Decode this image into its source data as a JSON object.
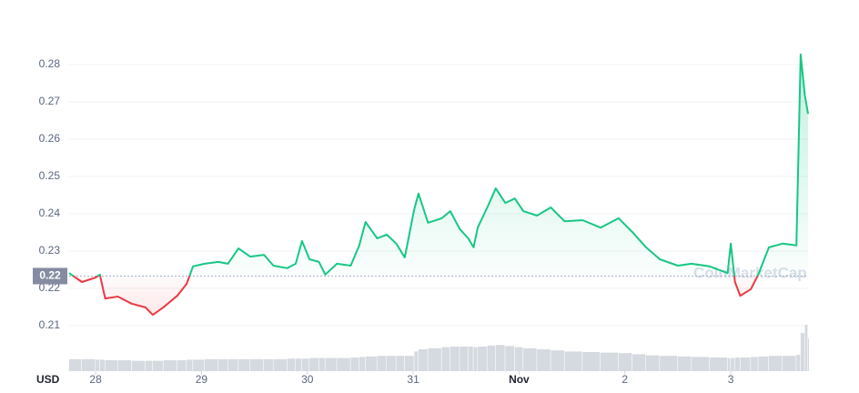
{
  "chart_data": {
    "type": "line",
    "currency": "USD",
    "watermark": "CoinMarketCap",
    "x": [
      -0.25,
      -0.13,
      0,
      0.04,
      0.09,
      0.21,
      0.34,
      0.47,
      0.54,
      0.64,
      0.77,
      0.86,
      0.92,
      1.03,
      1.16,
      1.25,
      1.35,
      1.46,
      1.59,
      1.68,
      1.81,
      1.89,
      1.95,
      2.02,
      2.11,
      2.17,
      2.28,
      2.41,
      2.49,
      2.55,
      2.66,
      2.75,
      2.84,
      2.92,
      3.01,
      3.05,
      3.14,
      3.27,
      3.35,
      3.44,
      3.52,
      3.57,
      3.61,
      3.7,
      3.78,
      3.87,
      3.96,
      4.04,
      4.17,
      4.3,
      4.43,
      4.6,
      4.77,
      4.94,
      5.07,
      5.2,
      5.33,
      5.5,
      5.63,
      5.8,
      5.97,
      6.0,
      6.04,
      6.09,
      6.19,
      6.26,
      6.36,
      6.49,
      6.62,
      6.66,
      6.7,
      6.73
    ],
    "series": [
      {
        "values": [
          0.2241,
          0.2217,
          0.2229,
          0.2237,
          0.2173,
          0.2178,
          0.2159,
          0.2149,
          0.2129,
          0.2149,
          0.218,
          0.2212,
          0.2259,
          0.2266,
          0.2271,
          0.2266,
          0.2307,
          0.2285,
          0.229,
          0.2261,
          0.2254,
          0.2266,
          0.2327,
          0.2278,
          0.2271,
          0.2237,
          0.2266,
          0.2261,
          0.2315,
          0.2378,
          0.2334,
          0.2344,
          0.232,
          0.2283,
          0.2412,
          0.2454,
          0.2376,
          0.2388,
          0.2407,
          0.2359,
          0.2334,
          0.231,
          0.2363,
          0.2417,
          0.2468,
          0.2429,
          0.2441,
          0.2407,
          0.2395,
          0.2417,
          0.238,
          0.2383,
          0.2363,
          0.2388,
          0.2351,
          0.231,
          0.2278,
          0.2261,
          0.2266,
          0.2259,
          0.2241,
          0.232,
          0.2217,
          0.218,
          0.2198,
          0.2237,
          0.231,
          0.232,
          0.2315,
          0.2827,
          0.2717,
          0.2668
        ],
        "color_up": "#16c784",
        "color_down": "#ea3943"
      }
    ],
    "volume": {
      "color": "#d5d9e0",
      "max": 100,
      "values": [
        22,
        22,
        21,
        21,
        20,
        20,
        19,
        19,
        19,
        20,
        20,
        21,
        21,
        22,
        22,
        22,
        22,
        22,
        22,
        22,
        23,
        23,
        23,
        24,
        24,
        24,
        24,
        25,
        26,
        27,
        28,
        28,
        28,
        28,
        36,
        40,
        42,
        44,
        45,
        45,
        45,
        44,
        45,
        47,
        48,
        46,
        44,
        42,
        40,
        38,
        36,
        35,
        34,
        33,
        31,
        29,
        28,
        27,
        26,
        25,
        24,
        24,
        25,
        25,
        26,
        27,
        28,
        28,
        30,
        70,
        85,
        60
      ]
    },
    "baseline": {
      "value": 0.2233,
      "label": "0.22"
    },
    "xlim": [
      -0.25,
      6.73
    ],
    "xticks": [
      {
        "value": 0,
        "label": "28"
      },
      {
        "value": 1,
        "label": "29"
      },
      {
        "value": 2,
        "label": "30"
      },
      {
        "value": 3,
        "label": "31"
      },
      {
        "value": 4,
        "label": "Nov"
      },
      {
        "value": 5,
        "label": "2"
      },
      {
        "value": 6,
        "label": "3"
      }
    ],
    "ylim": [
      0.1978,
      0.28756
    ],
    "yticks": [
      0.21,
      0.22,
      0.23,
      0.24,
      0.25,
      0.26,
      0.27,
      0.28
    ],
    "grid": true
  }
}
